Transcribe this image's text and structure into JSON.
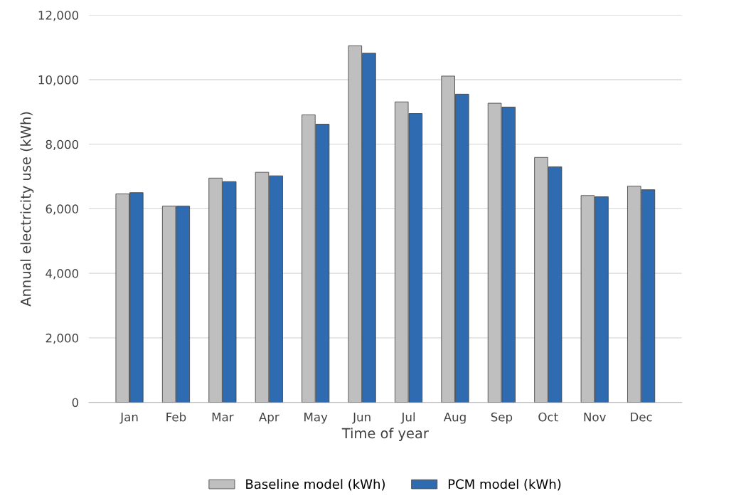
{
  "chart_data": {
    "type": "bar",
    "xlabel": "Time of year",
    "ylabel": "Annual electricity use (kWh)",
    "categories": [
      "Jan",
      "Feb",
      "Mar",
      "Apr",
      "May",
      "Jun",
      "Jul",
      "Aug",
      "Sep",
      "Oct",
      "Nov",
      "Dec"
    ],
    "series": [
      {
        "name": "Baseline model (kWh)",
        "color": "#bfbfbf",
        "values": [
          6460,
          6080,
          6950,
          7130,
          8910,
          11050,
          9310,
          10110,
          9270,
          7590,
          6410,
          6700
        ]
      },
      {
        "name": "PCM model (kWh)",
        "color": "#2e6bb0",
        "values": [
          6500,
          6080,
          6840,
          7020,
          8620,
          10820,
          8950,
          9550,
          9150,
          7300,
          6370,
          6590
        ]
      }
    ],
    "ylim": [
      0,
      12000
    ],
    "yticks": [
      {
        "value": 0,
        "label": "0"
      },
      {
        "value": 2000,
        "label": "2,000"
      },
      {
        "value": 4000,
        "label": "4,000"
      },
      {
        "value": 6000,
        "label": "6,000"
      },
      {
        "value": 8000,
        "label": "8,000"
      },
      {
        "value": 10000,
        "label": "10,000"
      },
      {
        "value": 12000,
        "label": "12,000"
      }
    ],
    "grid": "y",
    "legend": "bottom"
  }
}
